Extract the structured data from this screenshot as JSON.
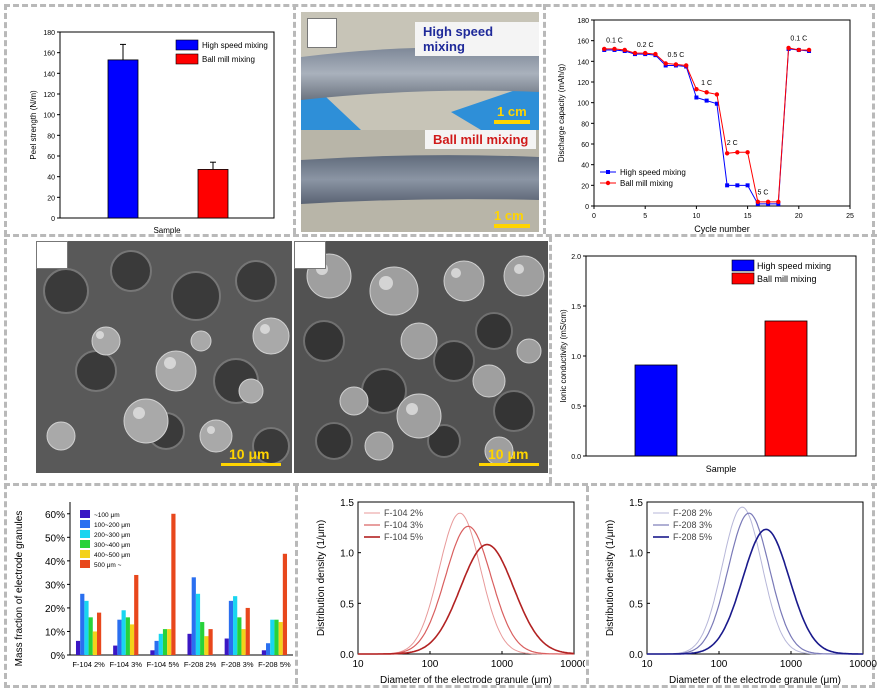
{
  "panel_labels": {
    "photo_high": "High speed mixing",
    "photo_ball": "Ball mill mixing",
    "photo_scale_1": "1 cm",
    "photo_scale_2": "1 cm",
    "sem_scale_1": "10 μm",
    "sem_scale_2": "10 μm"
  },
  "colors": {
    "blue": "#0000ff",
    "red": "#ff0000",
    "dark_red": "#b22222",
    "navy": "#1a1a8c"
  },
  "chart_data": [
    {
      "id": "peel",
      "type": "bar",
      "categories": [
        "High speed mixing",
        "Ball mill mixing"
      ],
      "values": [
        153,
        47
      ],
      "errors": [
        15,
        7
      ],
      "xlabel": "Sample",
      "ylabel": "Peel strength (N/m)",
      "ylim": [
        0,
        180
      ],
      "yticks": [
        0,
        20,
        40,
        60,
        80,
        100,
        120,
        140,
        160,
        180
      ],
      "legend": [
        "High speed mixing",
        "Ball mill mixing"
      ]
    },
    {
      "id": "rate",
      "type": "line",
      "xlabel": "Cycle number",
      "ylabel": "Discharge capacity (mAh/g)",
      "xlim": [
        0,
        25
      ],
      "ylim": [
        0,
        180
      ],
      "xticks": [
        0,
        5,
        10,
        15,
        20,
        25
      ],
      "yticks": [
        0,
        20,
        40,
        60,
        80,
        100,
        120,
        140,
        160,
        180
      ],
      "series": [
        {
          "name": "High speed mixing",
          "x": [
            1,
            2,
            3,
            4,
            5,
            6,
            7,
            8,
            9,
            10,
            11,
            12,
            13,
            14,
            15,
            16,
            17,
            18,
            19,
            20,
            21
          ],
          "y": [
            151,
            151,
            150,
            147,
            147,
            146,
            136,
            136,
            135,
            105,
            102,
            99,
            20,
            20,
            20,
            2,
            2,
            2,
            152,
            151,
            150
          ]
        },
        {
          "name": "Ball mill mixing",
          "x": [
            1,
            2,
            3,
            4,
            5,
            6,
            7,
            8,
            9,
            10,
            11,
            12,
            13,
            14,
            15,
            16,
            17,
            18,
            19,
            20,
            21
          ],
          "y": [
            152,
            152,
            151,
            148,
            148,
            147,
            138,
            137,
            136,
            113,
            110,
            108,
            51,
            52,
            52,
            4,
            4,
            4,
            153,
            151,
            151
          ]
        }
      ],
      "annotations": [
        {
          "text": "0.1 C",
          "x": 2,
          "y": 158
        },
        {
          "text": "0.2 C",
          "x": 5,
          "y": 154
        },
        {
          "text": "0.5 C",
          "x": 8,
          "y": 144
        },
        {
          "text": "1 C",
          "x": 11,
          "y": 117
        },
        {
          "text": "2 C",
          "x": 13.5,
          "y": 59
        },
        {
          "text": "5 C",
          "x": 16.5,
          "y": 11
        },
        {
          "text": "0.1 C",
          "x": 20,
          "y": 160
        }
      ]
    },
    {
      "id": "ionic",
      "type": "bar",
      "categories": [
        "High speed mixing",
        "Ball mill mixing"
      ],
      "values": [
        0.91,
        1.35
      ],
      "xlabel": "Sample",
      "ylabel": "Ionic conductivity (mS/cm)",
      "ylim": [
        0,
        2.0
      ],
      "yticks": [
        0.0,
        0.5,
        1.0,
        1.5,
        2.0
      ],
      "legend": [
        "High speed mixing",
        "Ball mill mixing"
      ]
    },
    {
      "id": "mass",
      "type": "bar",
      "categories": [
        "F-104 2%",
        "F-104 3%",
        "F-104 5%",
        "F-208 2%",
        "F-208 3%",
        "F-208 5%"
      ],
      "ylabel": "Mass fraction of electrode granules",
      "ylim": [
        0,
        65
      ],
      "yticks": [
        "0%",
        "10%",
        "20%",
        "30%",
        "40%",
        "50%",
        "60%"
      ],
      "series": [
        {
          "name": "~100 μm",
          "color": "#3a17c4",
          "values": [
            6,
            4,
            2,
            9,
            7,
            2
          ]
        },
        {
          "name": "100~200 μm",
          "color": "#2a6ff0",
          "values": [
            26,
            15,
            6,
            33,
            23,
            5
          ]
        },
        {
          "name": "200~300 μm",
          "color": "#19d5f0",
          "values": [
            23,
            19,
            9,
            26,
            25,
            15
          ]
        },
        {
          "name": "300~400 μm",
          "color": "#27d23a",
          "values": [
            16,
            16,
            11,
            14,
            16,
            15
          ]
        },
        {
          "name": "400~500 μm",
          "color": "#f3d21a",
          "values": [
            10,
            13,
            11,
            8,
            11,
            14
          ]
        },
        {
          "name": "500 μm ~",
          "color": "#e8471c",
          "values": [
            18,
            34,
            60,
            11,
            20,
            43
          ]
        }
      ]
    },
    {
      "id": "dist104",
      "type": "line",
      "xlabel": "Diameter of the electrode granule (μm)",
      "ylabel": "Distribution density (1/μm)",
      "xscale": "log",
      "xlim": [
        10,
        10000
      ],
      "ylim": [
        0,
        1.5
      ],
      "xticks": [
        "10",
        "100",
        "1000",
        "10000"
      ],
      "yticks": [
        "0.0",
        "0.5",
        "1.0",
        "1.5"
      ],
      "series": [
        {
          "name": "F-104 2%",
          "color": "#e89a9a",
          "width": 1,
          "peak_x": 260,
          "peak_y": 1.39,
          "sigma_log10": 0.287
        },
        {
          "name": "F-104 3%",
          "color": "#d95f5f",
          "width": 1.2,
          "peak_x": 340,
          "peak_y": 1.26,
          "sigma_log10": 0.317
        },
        {
          "name": "F-104 5%",
          "color": "#b22222",
          "width": 1.6,
          "peak_x": 620,
          "peak_y": 1.08,
          "sigma_log10": 0.369
        }
      ]
    },
    {
      "id": "dist208",
      "type": "line",
      "xlabel": "Diameter of the electrode granule (μm)",
      "ylabel": "Distribution density (1/μm)",
      "xscale": "log",
      "xlim": [
        10,
        10000
      ],
      "ylim": [
        0,
        1.5
      ],
      "xticks": [
        "10",
        "100",
        "1000",
        "10000"
      ],
      "yticks": [
        "0.0",
        "0.5",
        "1.0",
        "1.5"
      ],
      "series": [
        {
          "name": "F-208 2%",
          "color": "#b7b7d9",
          "width": 1,
          "peak_x": 210,
          "peak_y": 1.45,
          "sigma_log10": 0.275
        },
        {
          "name": "F-208 3%",
          "color": "#7a7ab8",
          "width": 1.2,
          "peak_x": 260,
          "peak_y": 1.39,
          "sigma_log10": 0.287
        },
        {
          "name": "F-208 5%",
          "color": "#1a1a8c",
          "width": 1.6,
          "peak_x": 450,
          "peak_y": 1.23,
          "sigma_log10": 0.324
        }
      ]
    }
  ]
}
